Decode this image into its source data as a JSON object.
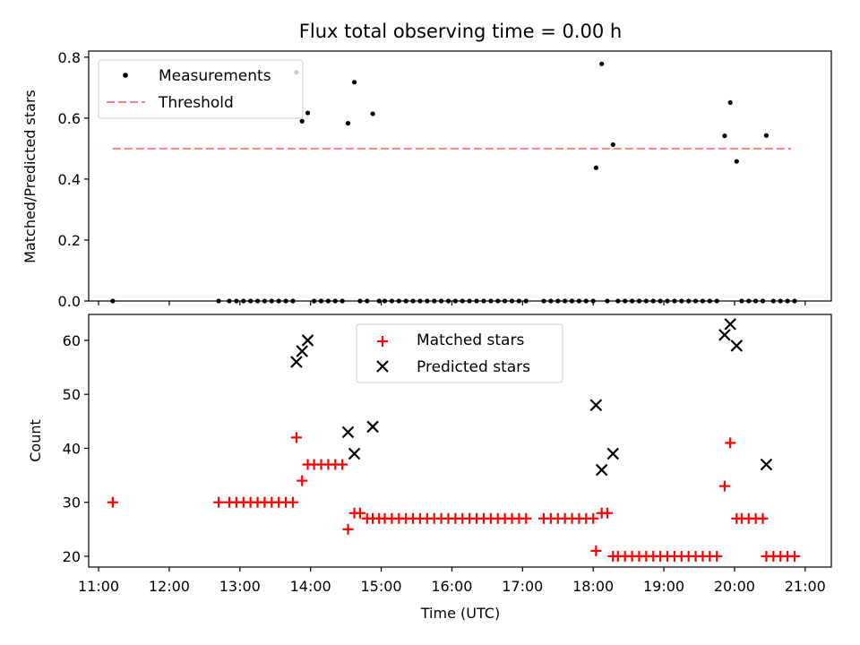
{
  "chart_data": [
    {
      "type": "scatter",
      "title": "Flux total observing time = 0.00 h",
      "xlabel": "",
      "ylabel": "Matched/Predicted stars",
      "xlim": [
        10.86,
        21.37
      ],
      "ylim": [
        0,
        0.82
      ],
      "yticks": [
        0,
        0.2,
        0.4,
        0.6,
        0.8
      ],
      "ytick_labels": [
        "0.0",
        "0.2",
        "0.4",
        "0.6",
        "0.8"
      ],
      "legend": {
        "position": "top-left",
        "entries": [
          "Measurements",
          "Threshold"
        ]
      },
      "series": [
        {
          "name": "Measurements",
          "marker": "dot",
          "color": "#000000",
          "x": [
            11.2,
            12.7,
            12.85,
            12.95,
            13.05,
            13.15,
            13.25,
            13.35,
            13.45,
            13.55,
            13.65,
            13.75,
            13.8,
            13.88,
            13.96,
            14.05,
            14.15,
            14.25,
            14.35,
            14.45,
            14.53,
            14.62,
            14.7,
            14.8,
            14.88,
            14.97,
            15.05,
            15.15,
            15.25,
            15.35,
            15.45,
            15.55,
            15.65,
            15.75,
            15.85,
            15.95,
            16.05,
            16.15,
            16.25,
            16.35,
            16.45,
            16.55,
            16.65,
            16.75,
            16.85,
            16.95,
            17.05,
            17.3,
            17.4,
            17.5,
            17.6,
            17.7,
            17.8,
            17.9,
            18.0,
            18.04,
            18.12,
            18.2,
            18.28,
            18.35,
            18.45,
            18.55,
            18.65,
            18.75,
            18.85,
            18.95,
            19.05,
            19.15,
            19.25,
            19.35,
            19.45,
            19.55,
            19.65,
            19.75,
            19.86,
            19.94,
            20.03,
            20.1,
            20.2,
            20.3,
            20.4,
            20.45,
            20.55,
            20.65,
            20.75,
            20.85
          ],
          "y": [
            0.0,
            0.0,
            0.0,
            0.0,
            0.0,
            0.0,
            0.0,
            0.0,
            0.0,
            0.0,
            0.0,
            0.0,
            0.75,
            0.59,
            0.617,
            0.0,
            0.0,
            0.0,
            0.0,
            0.0,
            0.583,
            0.718,
            0.0,
            0.0,
            0.614,
            0.0,
            0.0,
            0.0,
            0.0,
            0.0,
            0.0,
            0.0,
            0.0,
            0.0,
            0.0,
            0.0,
            0.0,
            0.0,
            0.0,
            0.0,
            0.0,
            0.0,
            0.0,
            0.0,
            0.0,
            0.0,
            0.0,
            0.0,
            0.0,
            0.0,
            0.0,
            0.0,
            0.0,
            0.0,
            0.0,
            0.437,
            0.778,
            0.0,
            0.513,
            0.0,
            0.0,
            0.0,
            0.0,
            0.0,
            0.0,
            0.0,
            0.0,
            0.0,
            0.0,
            0.0,
            0.0,
            0.0,
            0.0,
            0.0,
            0.542,
            0.651,
            0.458,
            0.0,
            0.0,
            0.0,
            0.0,
            0.543,
            0.0,
            0.0,
            0.0,
            0.0
          ]
        },
        {
          "name": "Threshold",
          "style": "dashed-line",
          "color": "#ff7f7f",
          "x": [
            11.2,
            20.8
          ],
          "y": [
            0.5,
            0.5
          ]
        }
      ]
    },
    {
      "type": "scatter",
      "title": "",
      "xlabel": "Time (UTC)",
      "ylabel": "Count",
      "xlim": [
        10.86,
        21.37
      ],
      "ylim": [
        18.0,
        64.8
      ],
      "xticks": [
        11,
        12,
        13,
        14,
        15,
        16,
        17,
        18,
        19,
        20,
        21
      ],
      "xtick_labels": [
        "11:00",
        "12:00",
        "13:00",
        "14:00",
        "15:00",
        "16:00",
        "17:00",
        "18:00",
        "19:00",
        "20:00",
        "21:00"
      ],
      "yticks": [
        20,
        30,
        40,
        50,
        60
      ],
      "ytick_labels": [
        "20",
        "30",
        "40",
        "50",
        "60"
      ],
      "legend": {
        "position": "top-center",
        "entries": [
          "Matched stars",
          "Predicted stars"
        ]
      },
      "series": [
        {
          "name": "Matched stars",
          "marker": "plus",
          "color": "#ff0000",
          "x": [
            11.2,
            12.7,
            12.85,
            12.95,
            13.05,
            13.15,
            13.25,
            13.35,
            13.45,
            13.55,
            13.65,
            13.75,
            13.8,
            13.88,
            13.96,
            14.05,
            14.15,
            14.25,
            14.35,
            14.45,
            14.53,
            14.62,
            14.7,
            14.8,
            14.88,
            14.97,
            15.05,
            15.15,
            15.25,
            15.35,
            15.45,
            15.55,
            15.65,
            15.75,
            15.85,
            15.95,
            16.05,
            16.15,
            16.25,
            16.35,
            16.45,
            16.55,
            16.65,
            16.75,
            16.85,
            16.95,
            17.05,
            17.3,
            17.4,
            17.5,
            17.6,
            17.7,
            17.8,
            17.9,
            18.0,
            18.04,
            18.12,
            18.2,
            18.28,
            18.35,
            18.45,
            18.55,
            18.65,
            18.75,
            18.85,
            18.95,
            19.05,
            19.15,
            19.25,
            19.35,
            19.45,
            19.55,
            19.65,
            19.75,
            19.86,
            19.94,
            20.03,
            20.1,
            20.2,
            20.3,
            20.4,
            20.45,
            20.55,
            20.65,
            20.75,
            20.85
          ],
          "y": [
            30,
            30,
            30,
            30,
            30,
            30,
            30,
            30,
            30,
            30,
            30,
            30,
            42,
            34,
            37,
            37,
            37,
            37,
            37,
            37,
            25,
            28,
            28,
            27,
            27,
            27,
            27,
            27,
            27,
            27,
            27,
            27,
            27,
            27,
            27,
            27,
            27,
            27,
            27,
            27,
            27,
            27,
            27,
            27,
            27,
            27,
            27,
            27,
            27,
            27,
            27,
            27,
            27,
            27,
            27,
            21,
            28,
            28,
            20,
            20,
            20,
            20,
            20,
            20,
            20,
            20,
            20,
            20,
            20,
            20,
            20,
            20,
            20,
            20,
            33,
            41,
            27,
            27,
            27,
            27,
            27,
            20,
            20,
            20,
            20,
            20
          ]
        },
        {
          "name": "Predicted stars",
          "marker": "x",
          "color": "#000000",
          "x": [
            13.8,
            13.88,
            13.96,
            14.53,
            14.62,
            14.88,
            18.04,
            18.12,
            18.28,
            19.86,
            19.94,
            20.03,
            20.45
          ],
          "y": [
            56,
            58,
            60,
            43,
            39,
            44,
            48,
            36,
            39,
            61,
            63,
            59,
            37
          ]
        }
      ]
    }
  ]
}
